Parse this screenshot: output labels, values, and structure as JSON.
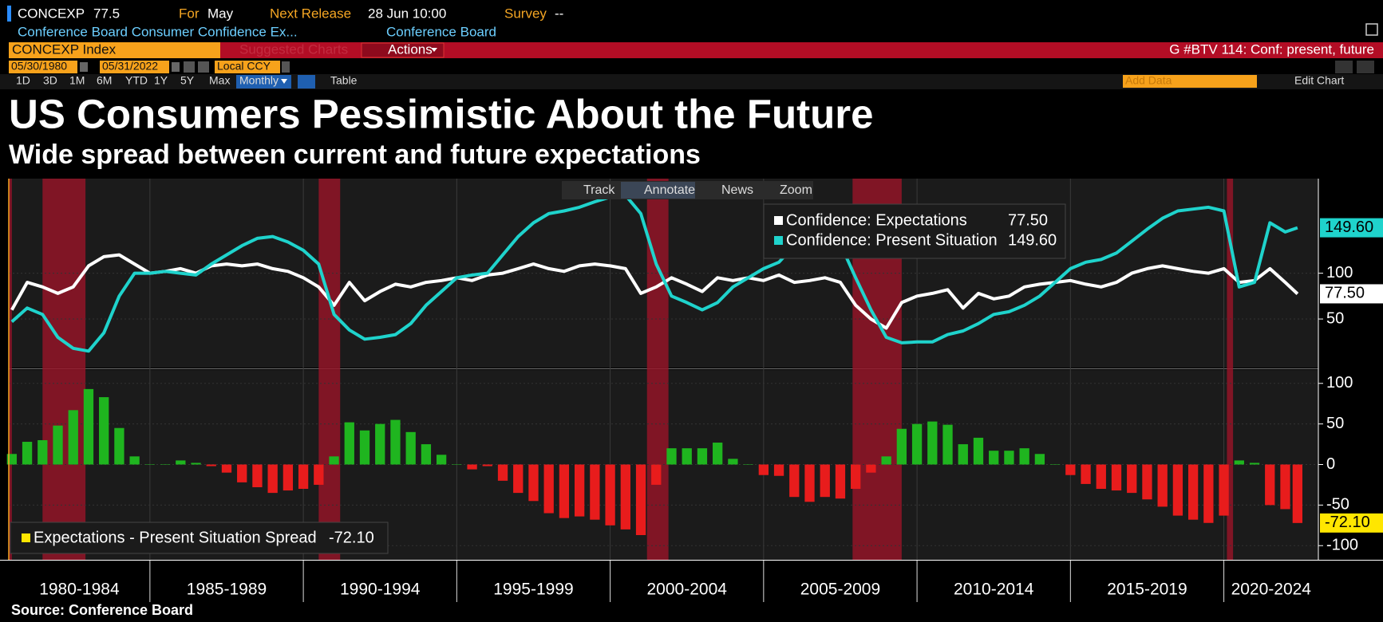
{
  "header": {
    "ticker": "CONCEXP",
    "last": "77.5",
    "for_label": "For",
    "for_value": "May",
    "next_release_label": "Next Release",
    "next_release": "28 Jun 10:00",
    "survey_label": "Survey",
    "survey_value": "--",
    "description": "Conference Board Consumer Confidence Ex...",
    "source_name": "Conference Board"
  },
  "toolbar": {
    "security": "CONCEXP Index",
    "suggested": "Suggested Charts",
    "actions": "Actions",
    "page": "G #BTV 114: Conf: present, future",
    "start_date": "05/30/1980",
    "end_date": "05/31/2022",
    "currency": "Local CCY",
    "ranges": [
      "1D",
      "3D",
      "1M",
      "6M",
      "YTD",
      "1Y",
      "5Y",
      "Max"
    ],
    "frequency": "Monthly",
    "table": "Table",
    "add_data": "Add Data",
    "edit_chart": "Edit Chart"
  },
  "chart_tools": [
    "Track",
    "Annotate",
    "News",
    "Zoom"
  ],
  "title": "US Consumers Pessimistic About the Future",
  "subtitle": "Wide spread between current and future expectations",
  "source": "Source: Conference Board",
  "chart_data": [
    {
      "type": "line",
      "x": [
        1980.5,
        1981,
        1981.5,
        1982,
        1982.5,
        1983,
        1983.5,
        1984,
        1984.5,
        1985,
        1985.5,
        1986,
        1986.5,
        1987,
        1987.5,
        1988,
        1988.5,
        1989,
        1989.5,
        1990,
        1990.5,
        1991,
        1991.5,
        1992,
        1992.5,
        1993,
        1993.5,
        1994,
        1994.5,
        1995,
        1995.5,
        1996,
        1996.5,
        1997,
        1997.5,
        1998,
        1998.5,
        1999,
        1999.5,
        2000,
        2000.5,
        2001,
        2001.5,
        2002,
        2002.5,
        2003,
        2003.5,
        2004,
        2004.5,
        2005,
        2005.5,
        2006,
        2006.5,
        2007,
        2007.5,
        2008,
        2008.5,
        2009,
        2009.5,
        2010,
        2010.5,
        2011,
        2011.5,
        2012,
        2012.5,
        2013,
        2013.5,
        2014,
        2014.5,
        2015,
        2015.5,
        2016,
        2016.5,
        2017,
        2017.5,
        2018,
        2018.5,
        2019,
        2019.5,
        2020,
        2020.5,
        2021,
        2021.5,
        2022,
        2022.4
      ],
      "xlim": [
        1980.4,
        2023.08
      ],
      "ylim": [
        0,
        200
      ],
      "yticks": [
        50,
        100
      ],
      "recessions": [
        [
          1980.0,
          1980.5
        ],
        [
          1981.5,
          1982.9
        ],
        [
          1990.5,
          1991.2
        ],
        [
          2001.2,
          2001.9
        ],
        [
          2007.9,
          2009.5
        ],
        [
          2020.1,
          2020.3
        ]
      ],
      "recession_color": "#9a1428",
      "series": [
        {
          "name": "Confidence: Expectations",
          "color": "#ffffff",
          "last_label": "77.50",
          "values": [
            60,
            90,
            85,
            78,
            85,
            108,
            118,
            120,
            110,
            100,
            102,
            105,
            100,
            108,
            110,
            108,
            110,
            105,
            102,
            95,
            85,
            65,
            90,
            70,
            80,
            88,
            85,
            90,
            92,
            95,
            92,
            98,
            100,
            105,
            110,
            105,
            102,
            108,
            110,
            108,
            105,
            78,
            85,
            95,
            88,
            80,
            95,
            92,
            95,
            92,
            98,
            90,
            92,
            95,
            90,
            65,
            50,
            40,
            68,
            75,
            78,
            82,
            62,
            78,
            72,
            75,
            85,
            88,
            90,
            92,
            88,
            85,
            90,
            100,
            105,
            108,
            105,
            102,
            100,
            105,
            90,
            92,
            105,
            90,
            77.5
          ]
        },
        {
          "name": "Confidence: Present Situation",
          "color": "#1fd3cc",
          "last_label": "149.60",
          "values": [
            47,
            62,
            55,
            30,
            18,
            15,
            35,
            75,
            100,
            100,
            102,
            100,
            98,
            110,
            120,
            130,
            138,
            140,
            134,
            125,
            110,
            55,
            38,
            28,
            30,
            33,
            45,
            65,
            80,
            95,
            98,
            100,
            120,
            140,
            155,
            165,
            168,
            172,
            178,
            183,
            185,
            165,
            110,
            75,
            68,
            60,
            68,
            85,
            95,
            105,
            112,
            130,
            138,
            135,
            132,
            95,
            60,
            30,
            24,
            25,
            25,
            33,
            37,
            45,
            55,
            58,
            65,
            75,
            90,
            105,
            112,
            115,
            122,
            135,
            148,
            160,
            168,
            170,
            172,
            168,
            85,
            90,
            155,
            145,
            149.6
          ]
        }
      ]
    },
    {
      "type": "bar",
      "name": "Expectations - Present Situation Spread",
      "last_label": "-72.10",
      "legend_color": "#ffe600",
      "positive_color": "#1fb51f",
      "negative_color": "#e81c1c",
      "x": [
        1980.5,
        1981,
        1981.5,
        1982,
        1982.5,
        1983,
        1983.5,
        1984,
        1984.5,
        1985,
        1985.5,
        1986,
        1986.5,
        1987,
        1987.5,
        1988,
        1988.5,
        1989,
        1989.5,
        1990,
        1990.5,
        1991,
        1991.5,
        1992,
        1992.5,
        1993,
        1993.5,
        1994,
        1994.5,
        1995,
        1995.5,
        1996,
        1996.5,
        1997,
        1997.5,
        1998,
        1998.5,
        1999,
        1999.5,
        2000,
        2000.5,
        2001,
        2001.5,
        2002,
        2002.5,
        2003,
        2003.5,
        2004,
        2004.5,
        2005,
        2005.5,
        2006,
        2006.5,
        2007,
        2007.5,
        2008,
        2008.5,
        2009,
        2009.5,
        2010,
        2010.5,
        2011,
        2011.5,
        2012,
        2012.5,
        2013,
        2013.5,
        2014,
        2014.5,
        2015,
        2015.5,
        2016,
        2016.5,
        2017,
        2017.5,
        2018,
        2018.5,
        2019,
        2019.5,
        2020,
        2020.5,
        2021,
        2021.5,
        2022,
        2022.4
      ],
      "values": [
        13,
        28,
        30,
        48,
        67,
        93,
        83,
        45,
        10,
        0,
        0,
        5,
        2,
        -2,
        -10,
        -22,
        -28,
        -35,
        -32,
        -30,
        -25,
        10,
        52,
        42,
        50,
        55,
        40,
        25,
        12,
        0,
        -6,
        -2,
        -20,
        -35,
        -45,
        -60,
        -66,
        -64,
        -68,
        -75,
        -80,
        -87,
        -25,
        20,
        20,
        20,
        27,
        7,
        0,
        -13,
        -14,
        -40,
        -46,
        -40,
        -42,
        -30,
        -10,
        10,
        44,
        50,
        53,
        49,
        25,
        33,
        17,
        17,
        20,
        13,
        0,
        -13,
        -24,
        -30,
        -32,
        -35,
        -43,
        -52,
        -63,
        -68,
        -72,
        -63,
        5,
        2,
        -50,
        -55,
        -72.1
      ],
      "xlim": [
        1980.4,
        2023.08
      ],
      "ylim": [
        -115,
        115
      ],
      "yticks": [
        -100,
        -50,
        0,
        50,
        100
      ],
      "xticks": [
        {
          "value": 1980,
          "label": "1980-1984"
        },
        {
          "value": 1985,
          "label": "1985-1989"
        },
        {
          "value": 1990,
          "label": "1990-1994"
        },
        {
          "value": 1995,
          "label": "1995-1999"
        },
        {
          "value": 2000,
          "label": "2000-2004"
        },
        {
          "value": 2005,
          "label": "2005-2009"
        },
        {
          "value": 2010,
          "label": "2010-2014"
        },
        {
          "value": 2015,
          "label": "2015-2019"
        },
        {
          "value": 2020,
          "label": "2020-2024"
        }
      ]
    }
  ]
}
